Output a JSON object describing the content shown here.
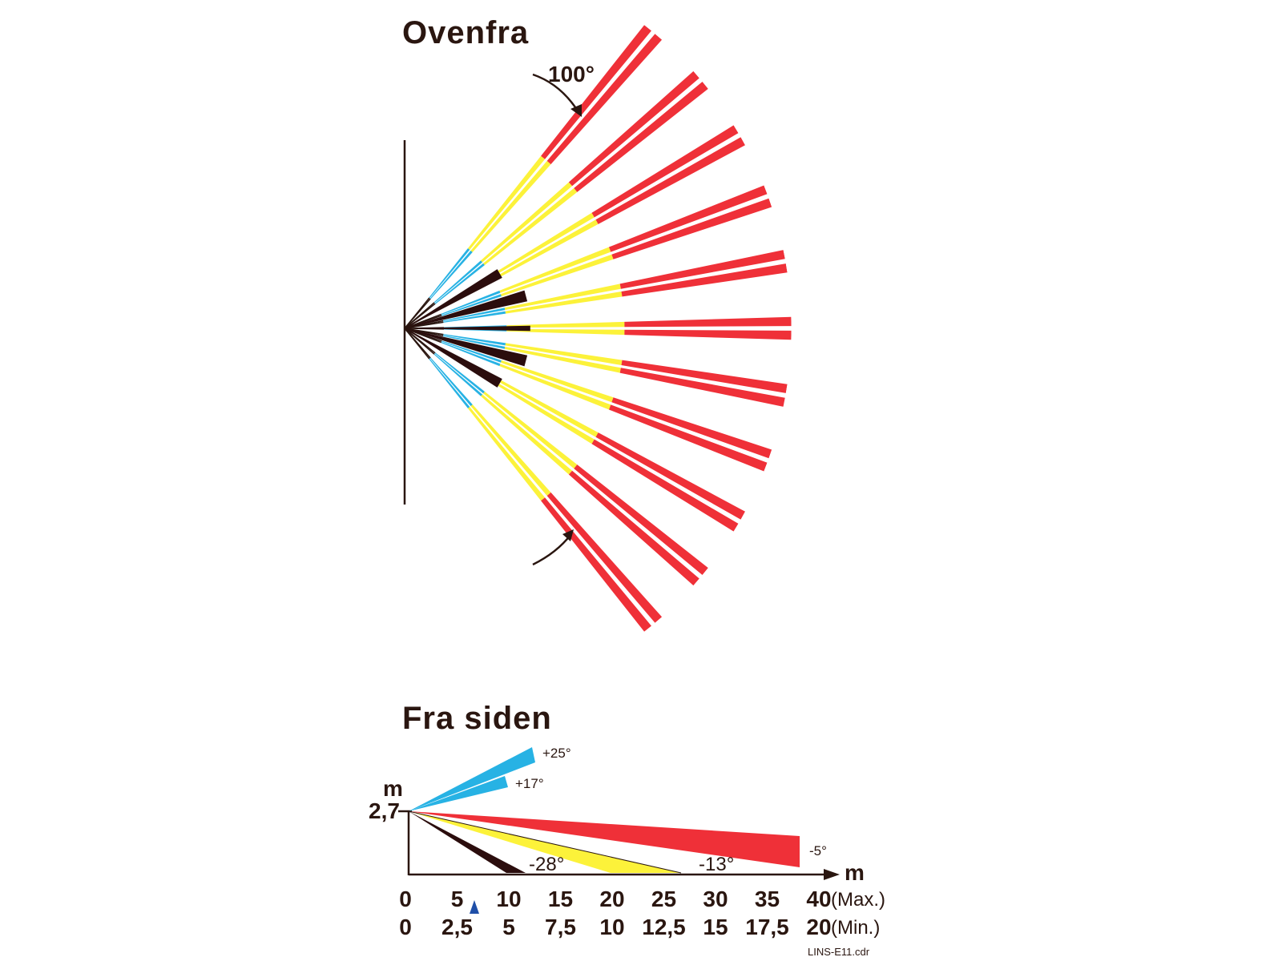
{
  "colors": {
    "ink": "#2a1610",
    "red": "#ef3038",
    "yellow": "#fcf23a",
    "blue": "#27b2e4",
    "black": "#2b0d0d",
    "marker": "#1f4fa8"
  },
  "top_view": {
    "title": "Ovenfra",
    "angle_label": "100°"
  },
  "side_view": {
    "title": "Fra  siden",
    "y_unit": "m",
    "height_label": "2,7",
    "x_unit": "m",
    "beams": [
      {
        "label": "+25°",
        "color": "blue"
      },
      {
        "label": "+17°",
        "color": "blue"
      },
      {
        "label": "-5°",
        "color": "red"
      },
      {
        "label": "-13°",
        "color": "yellow"
      },
      {
        "label": "-28°",
        "color": "black"
      }
    ],
    "scale_max": {
      "label": "(Max.)",
      "ticks": [
        "0",
        "5",
        "10",
        "15",
        "20",
        "25",
        "30",
        "35",
        "40"
      ]
    },
    "scale_min": {
      "label": "(Min.)",
      "ticks": [
        "0",
        "2,5",
        "5",
        "7,5",
        "10",
        "12,5",
        "15",
        "17,5",
        "20"
      ]
    }
  },
  "file_label": "LINS-E11.cdr"
}
